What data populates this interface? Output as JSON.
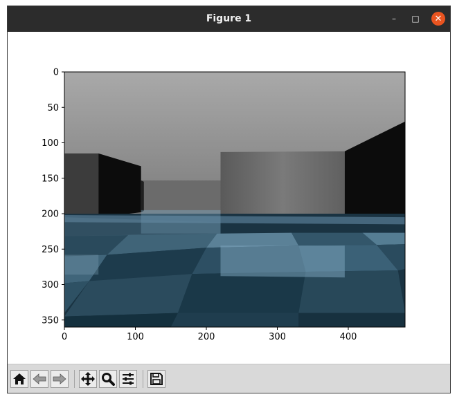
{
  "window": {
    "title": "Figure 1",
    "minimize_glyph": "–",
    "maximize_glyph": "□",
    "close_glyph": "✕"
  },
  "chart_data": {
    "type": "image",
    "title": "",
    "xlabel": "",
    "ylabel": "",
    "xlim": [
      0,
      480
    ],
    "ylim": [
      360,
      0
    ],
    "xticks": [
      0,
      100,
      200,
      300,
      400
    ],
    "yticks": [
      0,
      50,
      100,
      150,
      200,
      250,
      300,
      350
    ],
    "colors": {
      "sky_top": "#a9a9a9",
      "sky_bottom": "#7a7a7a",
      "wall_dark": "#0c0c0c",
      "wall_grey": "#6e6e6e",
      "floor_dark": "#1a3342",
      "floor_light": "#7aa3ba"
    }
  },
  "toolbar": {
    "buttons": [
      {
        "name": "home-button",
        "icon": "home-icon"
      },
      {
        "name": "back-button",
        "icon": "arrow-left-icon"
      },
      {
        "name": "forward-button",
        "icon": "arrow-right-icon"
      },
      {
        "name": "pan-button",
        "icon": "move-icon"
      },
      {
        "name": "zoom-button",
        "icon": "magnifier-icon"
      },
      {
        "name": "configure-subplots-button",
        "icon": "sliders-icon"
      },
      {
        "name": "save-button",
        "icon": "floppy-icon"
      }
    ]
  }
}
